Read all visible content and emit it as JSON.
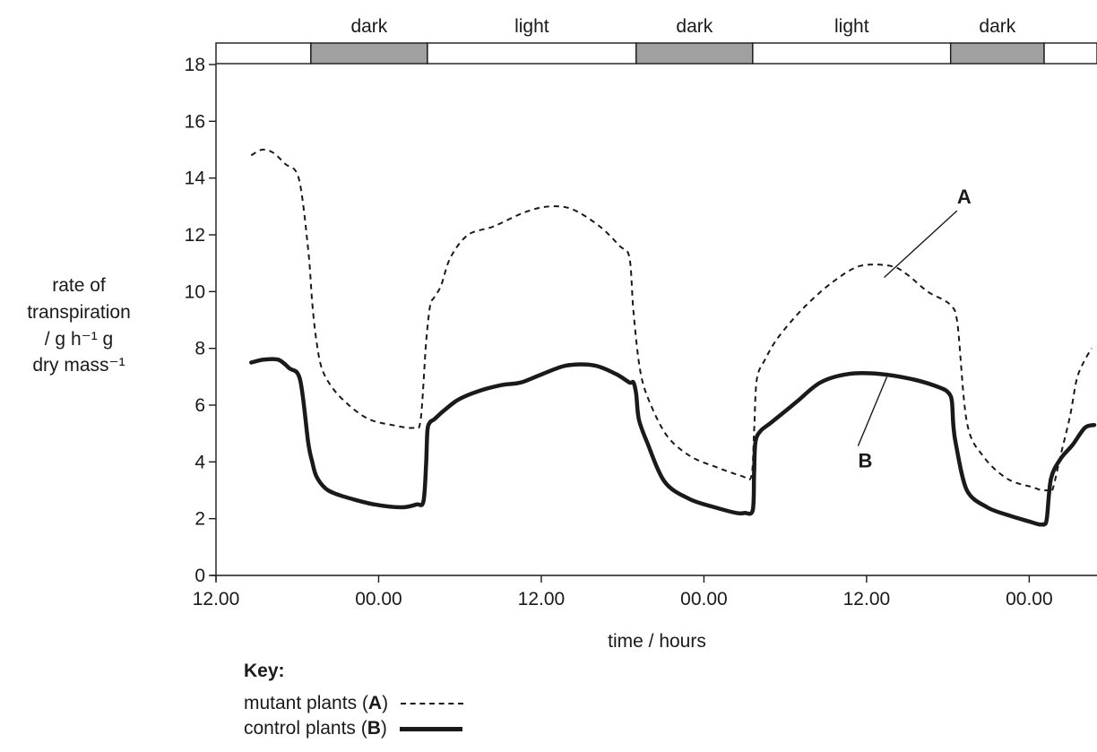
{
  "chart_data": {
    "type": "line",
    "xlabel": "time / hours",
    "ylabel_lines": [
      "rate of",
      "transpiration",
      "/ g h⁻¹ g",
      "dry mass⁻¹"
    ],
    "x_ticks": [
      0,
      12,
      24,
      36,
      48,
      60
    ],
    "x_tick_labels": [
      "12.00",
      "00.00",
      "12.00",
      "00.00",
      "12.00",
      "00.00"
    ],
    "xlim": [
      0,
      65
    ],
    "ylim": [
      0,
      18
    ],
    "y_ticks": [
      0,
      2,
      4,
      6,
      8,
      10,
      12,
      14,
      16,
      18
    ],
    "y_tick_labels": [
      "0",
      "2",
      "4",
      "6",
      "8",
      "10",
      "12",
      "14",
      "16",
      "18"
    ],
    "light_dark_bar": [
      {
        "label": "",
        "start": 0,
        "end": 7.0,
        "state": "light"
      },
      {
        "label": "dark",
        "start": 7.0,
        "end": 15.6,
        "state": "dark"
      },
      {
        "label": "light",
        "start": 15.6,
        "end": 31.0,
        "state": "light"
      },
      {
        "label": "dark",
        "start": 31.0,
        "end": 39.6,
        "state": "dark"
      },
      {
        "label": "light",
        "start": 39.6,
        "end": 54.2,
        "state": "light"
      },
      {
        "label": "dark",
        "start": 54.2,
        "end": 61.1,
        "state": "dark"
      },
      {
        "label": "",
        "start": 61.1,
        "end": 65,
        "state": "light"
      }
    ],
    "series": [
      {
        "name": "mutant plants (A)",
        "label": "A",
        "style": "dashed",
        "x": [
          2.6,
          3.4,
          4.2,
          5.1,
          6.1,
          6.8,
          7.1,
          7.4,
          7.8,
          8.6,
          9.8,
          11.3,
          13.0,
          14.6,
          15.1,
          15.5,
          15.8,
          16.1,
          16.6,
          17.3,
          18.6,
          20.5,
          22.8,
          24.6,
          26.3,
          28.3,
          29.8,
          30.5,
          30.8,
          31.3,
          32.0,
          33.3,
          35.0,
          37.0,
          38.8,
          39.5,
          39.7,
          39.9,
          40.5,
          41.5,
          43.3,
          45.4,
          47.5,
          49.8,
          51.0,
          52.5,
          53.7,
          54.2,
          54.7,
          55.4,
          56.6,
          58.4,
          60.3,
          60.9,
          61.3,
          61.7,
          62.3,
          63.0,
          63.5,
          64.0,
          64.6
        ],
        "y": [
          14.8,
          15.0,
          14.9,
          14.5,
          14.0,
          11.5,
          9.6,
          8.3,
          7.3,
          6.6,
          6.0,
          5.5,
          5.3,
          5.2,
          5.5,
          8.2,
          9.5,
          9.8,
          10.2,
          11.2,
          12.0,
          12.3,
          12.8,
          13.0,
          12.9,
          12.3,
          11.6,
          11.2,
          9.3,
          7.2,
          6.1,
          4.9,
          4.2,
          3.8,
          3.5,
          3.5,
          5.1,
          6.9,
          7.6,
          8.4,
          9.4,
          10.3,
          10.9,
          10.9,
          10.6,
          10.0,
          9.7,
          9.5,
          8.9,
          5.4,
          4.2,
          3.4,
          3.1,
          3.0,
          3.0,
          3.0,
          4.2,
          5.6,
          6.9,
          7.5,
          8.0
        ]
      },
      {
        "name": "control plants (B)",
        "label": "B",
        "style": "solid",
        "x": [
          2.6,
          3.5,
          4.6,
          5.4,
          6.2,
          6.8,
          7.1,
          7.4,
          8.0,
          8.7,
          10.0,
          11.7,
          13.7,
          14.8,
          15.3,
          15.5,
          15.6,
          15.8,
          16.1,
          16.8,
          17.9,
          19.4,
          21.0,
          22.5,
          24.1,
          25.9,
          27.9,
          29.5,
          30.5,
          30.8,
          31.0,
          31.2,
          31.8,
          33.1,
          34.9,
          36.8,
          38.4,
          39.0,
          39.6,
          39.7,
          39.8,
          40.2,
          41.0,
          42.8,
          44.6,
          46.7,
          49.0,
          51.5,
          53.5,
          54.1,
          54.3,
          54.4,
          54.6,
          55.4,
          56.9,
          58.6,
          60.0,
          60.7,
          61.0,
          61.1,
          61.3,
          61.6,
          62.3,
          63.2,
          64.1,
          64.8
        ],
        "y": [
          7.5,
          7.6,
          7.6,
          7.3,
          6.9,
          4.7,
          4.0,
          3.5,
          3.1,
          2.9,
          2.7,
          2.5,
          2.4,
          2.5,
          2.6,
          3.9,
          5.1,
          5.4,
          5.5,
          5.8,
          6.2,
          6.5,
          6.7,
          6.8,
          7.1,
          7.4,
          7.4,
          7.1,
          6.8,
          6.8,
          6.4,
          5.5,
          4.7,
          3.3,
          2.7,
          2.4,
          2.2,
          2.2,
          2.3,
          3.6,
          4.7,
          5.1,
          5.4,
          6.1,
          6.8,
          7.1,
          7.1,
          6.9,
          6.6,
          6.4,
          6.1,
          5.3,
          4.6,
          3.0,
          2.4,
          2.1,
          1.9,
          1.8,
          1.8,
          1.8,
          2.0,
          3.4,
          4.1,
          4.6,
          5.2,
          5.3
        ]
      }
    ],
    "annotations": [
      {
        "text": "A",
        "x": 55.2,
        "y": 13.1,
        "line_to": [
          49.3,
          10.5
        ]
      },
      {
        "text": "B",
        "x": 47.9,
        "y": 3.8,
        "line_to": [
          49.5,
          7.0
        ]
      }
    ],
    "key": {
      "title": "Key:",
      "rows": [
        {
          "text": "mutant plants (",
          "bold": "A",
          "after": ")"
        },
        {
          "text": "control plants (",
          "bold": "B",
          "after": ")"
        }
      ]
    }
  }
}
